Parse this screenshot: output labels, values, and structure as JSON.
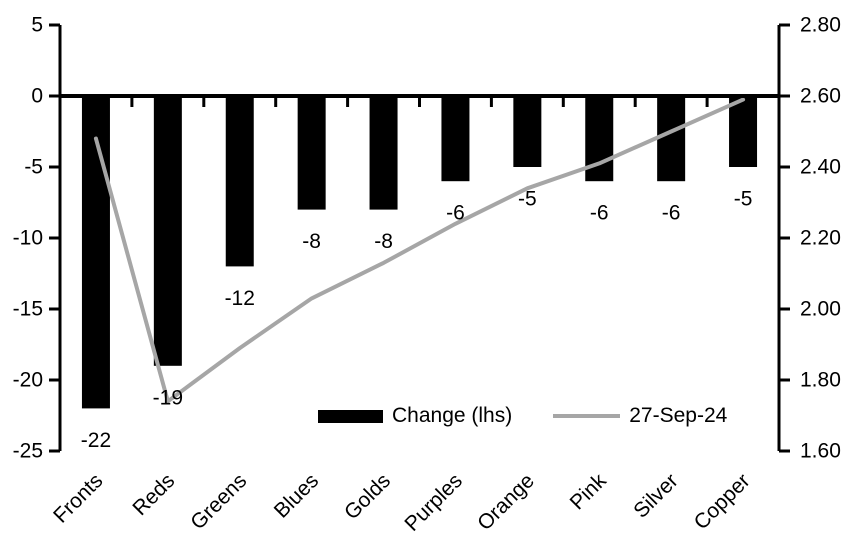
{
  "chart_data": {
    "type": "bar",
    "subtype": "bar-line-combo",
    "title": "",
    "categories": [
      "Fronts",
      "Reds",
      "Greens",
      "Blues",
      "Golds",
      "Purples",
      "Orange",
      "Pink",
      "Silver",
      "Copper"
    ],
    "series": [
      {
        "name": "Change (lhs)",
        "type": "bar",
        "axis": "left",
        "color": "#000000",
        "values": [
          -22,
          -19,
          -12,
          -8,
          -8,
          -6,
          -5,
          -6,
          -6,
          -5
        ],
        "data_labels": [
          "-22",
          "-19",
          "-12",
          "-8",
          "-8",
          "-6",
          "-5",
          "-6",
          "-6",
          "-5"
        ]
      },
      {
        "name": "27-Sep-24",
        "type": "line",
        "axis": "right",
        "color": "#a6a6a6",
        "values": [
          2.48,
          1.74,
          1.89,
          2.03,
          2.13,
          2.24,
          2.34,
          2.41,
          2.5,
          2.59
        ]
      }
    ],
    "left_axis": {
      "min": -25,
      "max": 5,
      "step": 5,
      "tick_labels": [
        "5",
        "0",
        "-5",
        "-10",
        "-15",
        "-20",
        "-25"
      ]
    },
    "right_axis": {
      "min": 1.6,
      "max": 2.8,
      "step": 0.2,
      "tick_labels": [
        "2.80",
        "2.60",
        "2.40",
        "2.20",
        "2.00",
        "1.80",
        "1.60"
      ]
    },
    "grid": false,
    "legend_position": "bottom-inside"
  },
  "legend": {
    "entries": [
      {
        "label": "Change (lhs)",
        "swatch": "bar",
        "color": "#000000"
      },
      {
        "label": "27-Sep-24",
        "swatch": "line",
        "color": "#a6a6a6"
      }
    ]
  },
  "colors": {
    "background": "#ffffff",
    "bar": "#000000",
    "line": "#a6a6a6",
    "axis": "#000000",
    "text": "#000000"
  }
}
